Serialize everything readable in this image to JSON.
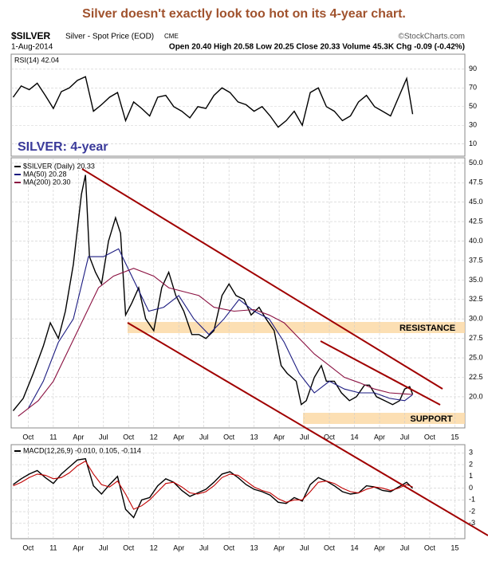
{
  "header": {
    "headline": "Silver doesn't exactly look too hot on its 4-year chart.",
    "symbol": "$SILVER",
    "description": "Silver - Spot Price (EOD)",
    "exchange": "CME",
    "credit": "©StockCharts.com",
    "date": "1-Aug-2014",
    "quote": "Open 20.40 High 20.58 Low 20.25 Close 20.33 Volume 45.3K Chg -0.09 (-0.42%)"
  },
  "chart_data": [
    {
      "type": "line",
      "title": "RSI(14) 42.04",
      "color": "#000000",
      "grid": true,
      "xlim": [
        2010.58,
        2015.1
      ],
      "ylim": [
        -3,
        106
      ],
      "yticks": [
        10,
        30,
        50,
        70,
        90
      ],
      "x": [
        2010.6,
        2010.68,
        2010.76,
        2010.84,
        2010.92,
        2011.0,
        2011.08,
        2011.16,
        2011.24,
        2011.32,
        2011.4,
        2011.48,
        2011.56,
        2011.64,
        2011.72,
        2011.8,
        2011.88,
        2011.96,
        2012.04,
        2012.12,
        2012.2,
        2012.28,
        2012.36,
        2012.44,
        2012.52,
        2012.6,
        2012.68,
        2012.76,
        2012.84,
        2012.92,
        2013.0,
        2013.08,
        2013.16,
        2013.24,
        2013.32,
        2013.4,
        2013.48,
        2013.56,
        2013.64,
        2013.72,
        2013.8,
        2013.88,
        2013.96,
        2014.04,
        2014.12,
        2014.2,
        2014.28,
        2014.36,
        2014.44,
        2014.52,
        2014.58
      ],
      "values": [
        60,
        72,
        68,
        75,
        62,
        48,
        66,
        70,
        78,
        82,
        45,
        52,
        60,
        65,
        35,
        55,
        48,
        40,
        60,
        62,
        50,
        45,
        38,
        50,
        48,
        62,
        70,
        65,
        55,
        52,
        45,
        50,
        40,
        28,
        35,
        45,
        30,
        65,
        70,
        50,
        45,
        35,
        40,
        55,
        62,
        50,
        45,
        40,
        60,
        80,
        42
      ]
    },
    {
      "type": "line",
      "grid": true,
      "xlim": [
        2010.58,
        2015.1
      ],
      "ylim": [
        16,
        50.7
      ],
      "yticks": [
        {
          "value": 20,
          "label": "20.0"
        },
        {
          "value": 22.5,
          "label": "22.5"
        },
        {
          "value": 25,
          "label": "25.0"
        },
        {
          "value": 27.5,
          "label": "27.5"
        },
        {
          "value": 30,
          "label": "30.0"
        },
        {
          "value": 32.5,
          "label": "32.5"
        },
        {
          "value": 35,
          "label": "35.0"
        },
        {
          "value": 37.5,
          "label": "37.5"
        },
        {
          "value": 40,
          "label": "40.0"
        },
        {
          "value": 42.5,
          "label": "42.5"
        },
        {
          "value": 45,
          "label": "45.0"
        },
        {
          "value": 47.5,
          "label": "47.5"
        },
        {
          "value": 50,
          "label": "50.0"
        }
      ],
      "xticks": [
        {
          "value": 2010.75,
          "label": "Oct"
        },
        {
          "value": 2011,
          "label": "11"
        },
        {
          "value": 2011.25,
          "label": "Apr"
        },
        {
          "value": 2011.5,
          "label": "Jul"
        },
        {
          "value": 2011.75,
          "label": "Oct"
        },
        {
          "value": 2012,
          "label": "12"
        },
        {
          "value": 2012.25,
          "label": "Apr"
        },
        {
          "value": 2012.5,
          "label": "Jul"
        },
        {
          "value": 2012.75,
          "label": "Oct"
        },
        {
          "value": 2013,
          "label": "13"
        },
        {
          "value": 2013.25,
          "label": "Apr"
        },
        {
          "value": 2013.5,
          "label": "Jul"
        },
        {
          "value": 2013.75,
          "label": "Oct"
        },
        {
          "value": 2014,
          "label": "14"
        },
        {
          "value": 2014.25,
          "label": "Apr"
        },
        {
          "value": 2014.5,
          "label": "Jul"
        },
        {
          "value": 2014.75,
          "label": "Oct"
        },
        {
          "value": 2015,
          "label": "15"
        }
      ],
      "annotations": [
        "SILVER: 4-year",
        "RESISTANCE",
        "SUPPORT"
      ],
      "series": [
        {
          "name": "$SILVER (Daily) 20.33",
          "color": "#000000",
          "x": [
            2010.6,
            2010.7,
            2010.8,
            2010.9,
            2010.97,
            2011.05,
            2011.12,
            2011.2,
            2011.28,
            2011.32,
            2011.36,
            2011.42,
            2011.48,
            2011.55,
            2011.62,
            2011.67,
            2011.72,
            2011.78,
            2011.85,
            2011.92,
            2012.0,
            2012.08,
            2012.15,
            2012.22,
            2012.3,
            2012.38,
            2012.45,
            2012.52,
            2012.6,
            2012.68,
            2012.75,
            2012.82,
            2012.9,
            2012.97,
            2013.05,
            2013.12,
            2013.2,
            2013.27,
            2013.33,
            2013.42,
            2013.47,
            2013.52,
            2013.6,
            2013.67,
            2013.72,
            2013.8,
            2013.87,
            2013.95,
            2014.02,
            2014.1,
            2014.15,
            2014.22,
            2014.3,
            2014.38,
            2014.45,
            2014.5,
            2014.55,
            2014.58
          ],
          "values": [
            18.2,
            19.8,
            23,
            26.5,
            29.5,
            27.5,
            31,
            37,
            46,
            48.5,
            38,
            36,
            34.5,
            40,
            43,
            41,
            30.5,
            32,
            34,
            30,
            28.5,
            34,
            36,
            33,
            31,
            28,
            28,
            27.5,
            28.5,
            33,
            34.5,
            33,
            32.5,
            30.5,
            31.5,
            30,
            28.5,
            24,
            23,
            22,
            19,
            19.5,
            22.5,
            24,
            22,
            22,
            20.5,
            19.5,
            20,
            21.5,
            21.5,
            20,
            19.5,
            19,
            19.5,
            21,
            21.3,
            20.33
          ]
        },
        {
          "name": "MA(50) 20.28",
          "color": "#1a1a80",
          "x": [
            2010.75,
            2010.9,
            2011.05,
            2011.2,
            2011.35,
            2011.5,
            2011.65,
            2011.8,
            2011.95,
            2012.1,
            2012.25,
            2012.4,
            2012.55,
            2012.7,
            2012.85,
            2013.0,
            2013.15,
            2013.3,
            2013.45,
            2013.6,
            2013.75,
            2013.9,
            2014.05,
            2014.2,
            2014.35,
            2014.5,
            2014.58
          ],
          "values": [
            18.5,
            22,
            27,
            30,
            38,
            38,
            39,
            35,
            31,
            31.5,
            33,
            30,
            28,
            30,
            32.5,
            31,
            30,
            27,
            23,
            20.5,
            22,
            21,
            20.5,
            20.5,
            19.8,
            19.5,
            20.28
          ]
        },
        {
          "name": "MA(200) 20.30",
          "color": "#8a1040",
          "x": [
            2010.65,
            2010.85,
            2011.0,
            2011.15,
            2011.3,
            2011.45,
            2011.6,
            2011.8,
            2012.0,
            2012.15,
            2012.3,
            2012.45,
            2012.6,
            2012.8,
            2013.0,
            2013.15,
            2013.3,
            2013.45,
            2013.6,
            2013.75,
            2013.9,
            2014.05,
            2014.2,
            2014.35,
            2014.58
          ],
          "values": [
            17.5,
            19.5,
            22,
            26,
            30,
            34,
            35.5,
            36.5,
            35.5,
            34,
            33.5,
            33,
            31.5,
            31,
            31.2,
            30.5,
            29.5,
            27.5,
            25.5,
            24,
            22.5,
            21.8,
            21,
            20.5,
            20.3
          ]
        }
      ]
    },
    {
      "type": "line",
      "grid": true,
      "xlim": [
        2010.58,
        2015.1
      ],
      "ylim": [
        -4.3,
        3.7
      ],
      "yticks": [
        3,
        2,
        1,
        0,
        -1,
        -2,
        -3
      ],
      "xticks": [
        {
          "value": 2010.75,
          "label": "Oct"
        },
        {
          "value": 2011,
          "label": "11"
        },
        {
          "value": 2011.25,
          "label": "Apr"
        },
        {
          "value": 2011.5,
          "label": "Jul"
        },
        {
          "value": 2011.75,
          "label": "Oct"
        },
        {
          "value": 2012,
          "label": "12"
        },
        {
          "value": 2012.25,
          "label": "Apr"
        },
        {
          "value": 2012.5,
          "label": "Jul"
        },
        {
          "value": 2012.75,
          "label": "Oct"
        },
        {
          "value": 2013,
          "label": "13"
        },
        {
          "value": 2013.25,
          "label": "Apr"
        },
        {
          "value": 2013.5,
          "label": "Jul"
        },
        {
          "value": 2013.75,
          "label": "Oct"
        },
        {
          "value": 2014,
          "label": "14"
        },
        {
          "value": 2014.25,
          "label": "Apr"
        },
        {
          "value": 2014.5,
          "label": "Jul"
        },
        {
          "value": 2014.75,
          "label": "Oct"
        },
        {
          "value": 2015,
          "label": "15"
        }
      ],
      "x": [
        2010.6,
        2010.68,
        2010.76,
        2010.84,
        2010.92,
        2011.0,
        2011.08,
        2011.16,
        2011.24,
        2011.32,
        2011.4,
        2011.48,
        2011.56,
        2011.64,
        2011.72,
        2011.8,
        2011.88,
        2011.96,
        2012.04,
        2012.12,
        2012.2,
        2012.28,
        2012.36,
        2012.44,
        2012.52,
        2012.6,
        2012.68,
        2012.76,
        2012.84,
        2012.92,
        2013.0,
        2013.08,
        2013.16,
        2013.24,
        2013.32,
        2013.4,
        2013.48,
        2013.56,
        2013.64,
        2013.72,
        2013.8,
        2013.88,
        2013.96,
        2014.04,
        2014.12,
        2014.2,
        2014.28,
        2014.36,
        2014.44,
        2014.52,
        2014.58
      ],
      "series": [
        {
          "name": "MACD(12,26,9) -0.010, 0.105, -0.114",
          "color": "#000000",
          "values": [
            0.3,
            0.8,
            1.2,
            1.5,
            0.9,
            0.4,
            1.2,
            1.8,
            2.4,
            2.5,
            0.2,
            -0.5,
            0.3,
            1.0,
            -1.8,
            -2.5,
            -1.0,
            -0.8,
            0.2,
            0.8,
            0.5,
            -0.2,
            -0.7,
            -0.4,
            -0.1,
            0.5,
            1.2,
            1.4,
            0.9,
            0.3,
            -0.1,
            -0.3,
            -0.6,
            -1.2,
            -1.3,
            -0.8,
            -1.1,
            0.3,
            0.9,
            0.6,
            0.2,
            -0.3,
            -0.5,
            -0.4,
            0.2,
            0.1,
            -0.2,
            -0.3,
            0.1,
            0.5,
            -0.01
          ]
        },
        {
          "color": "#c00000",
          "values": [
            0.2,
            0.5,
            0.9,
            1.2,
            1.1,
            0.8,
            0.9,
            1.3,
            1.9,
            2.3,
            1.2,
            0.3,
            0.1,
            0.6,
            -0.5,
            -1.8,
            -1.5,
            -1.0,
            -0.3,
            0.4,
            0.5,
            0.1,
            -0.4,
            -0.5,
            -0.3,
            0.2,
            0.9,
            1.2,
            1.1,
            0.6,
            0.1,
            -0.2,
            -0.4,
            -0.9,
            -1.2,
            -1.0,
            -1.0,
            -0.3,
            0.5,
            0.6,
            0.4,
            0.0,
            -0.3,
            -0.4,
            -0.1,
            0.1,
            0.0,
            -0.2,
            0.0,
            0.3,
            0.105
          ]
        }
      ]
    }
  ]
}
